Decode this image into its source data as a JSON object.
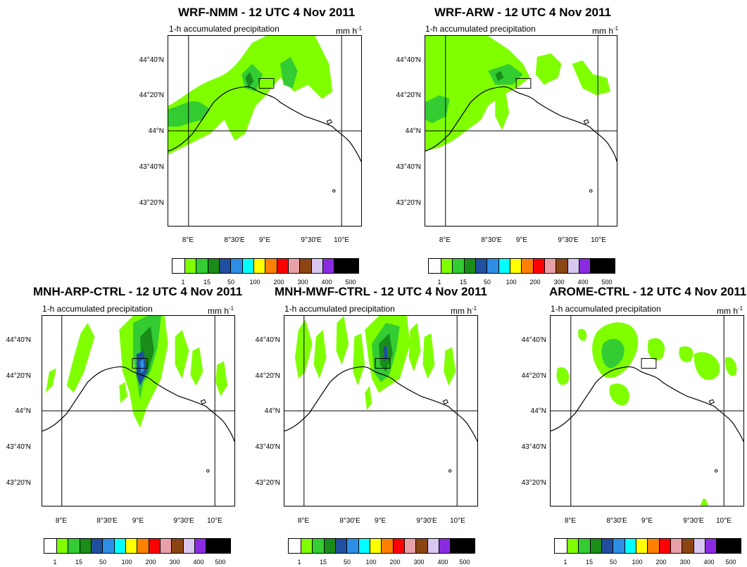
{
  "colors": {
    "scale": [
      "#ffffff",
      "#80ff00",
      "#33cc33",
      "#1a8c1a",
      "#1f4f9e",
      "#2e8ee6",
      "#00ffff",
      "#ffff00",
      "#ff8000",
      "#ff0000",
      "#e8a0a8",
      "#8b4513",
      "#d8c8f0",
      "#8a2be2",
      "#000000"
    ],
    "coast": "#000000",
    "gridline": "#000000"
  },
  "colorbar_labels": [
    "1",
    "15",
    "50",
    "100",
    "200",
    "300",
    "400",
    "500"
  ],
  "panels": [
    {
      "id": "wrf-nmm",
      "title": "WRF-NMM - 12 UTC 4 Nov 2011",
      "subtitle": "1-h accumulated precipitation",
      "units": "mm h",
      "units_sup": "-1",
      "y_ticks": [
        "44°40'N",
        "44°20'N",
        "44°N",
        "43°40'N",
        "43°20'N"
      ],
      "x_ticks": [
        "8°E",
        "8°30'E",
        "9°E",
        "9°30'E",
        "10°E"
      ]
    },
    {
      "id": "wrf-arw",
      "title": "WRF-ARW - 12 UTC 4 Nov 2011",
      "subtitle": "1-h accumulated precipitation",
      "units": "mm h",
      "units_sup": "-1",
      "y_ticks": [
        "44°40'N",
        "44°20'N",
        "44°N",
        "43°40'N",
        "43°20'N"
      ],
      "x_ticks": [
        "8°E",
        "8°30'E",
        "9°E",
        "9°30'E",
        "10°E"
      ]
    },
    {
      "id": "mnh-arp-ctrl",
      "title": "MNH-ARP-CTRL - 12 UTC 4 Nov 2011",
      "subtitle": "1-h accumulated precipitation",
      "units": "mm h",
      "units_sup": "-1",
      "y_ticks": [
        "44°40'N",
        "44°20'N",
        "44°N",
        "43°40'N",
        "43°20'N"
      ],
      "x_ticks": [
        "8°E",
        "8°30'E",
        "9°E",
        "9°30'E",
        "10°E"
      ]
    },
    {
      "id": "mnh-mwf-ctrl",
      "title": "MNH-MWF-CTRL - 12 UTC 4 Nov 2011",
      "subtitle": "1-h accumulated precipitation",
      "units": "mm h",
      "units_sup": "-1",
      "y_ticks": [
        "44°40'N",
        "44°20'N",
        "44°N",
        "43°40'N",
        "43°20'N"
      ],
      "x_ticks": [
        "8°E",
        "8°30'E",
        "9°E",
        "9°30'E",
        "10°E"
      ]
    },
    {
      "id": "arome-ctrl",
      "title": "AROME-CTRL - 12 UTC 4 Nov 2011",
      "subtitle": "1-h accumulated precipitation",
      "units": "mm h",
      "units_sup": "-1",
      "y_ticks": [
        "44°40'N",
        "44°20'N",
        "44°N",
        "43°40'N",
        "43°20'N"
      ],
      "x_ticks": [
        "8°E",
        "8°30'E",
        "9°E",
        "9°30'E",
        "10°E"
      ]
    }
  ]
}
